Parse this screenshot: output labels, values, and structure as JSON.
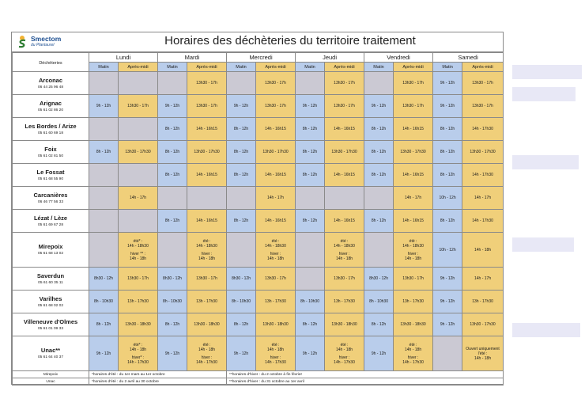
{
  "header": {
    "logo_name": "Smectom",
    "logo_sub": "du Plantaurel",
    "title": "Horaires des déchèteries du territoire traitement"
  },
  "columns": {
    "corner_label": "Déchèteries",
    "days": [
      "Lundi",
      "Mardi",
      "Mercredi",
      "Jeudi",
      "Vendredi",
      "Samedi"
    ],
    "morning_label": "Matin",
    "afternoon_label": "Après-midi"
  },
  "sites": [
    {
      "name": "Arconac",
      "phone": "06 44 25 96 48",
      "cells": [
        "",
        "",
        "",
        "13h30 - 17h",
        "",
        "13h30 - 17h",
        "",
        "13h30 - 17h",
        "",
        "13h30 - 17h",
        "9h - 12h",
        "13h30 - 17h"
      ]
    },
    {
      "name": "Arignac",
      "phone": "05 61 02 86 20",
      "cells": [
        "9h - 12h",
        "13h30 - 17h",
        "9h - 12h",
        "13h30 - 17h",
        "9h - 12h",
        "13h30 - 17h",
        "9h - 12h",
        "13h30 - 17h",
        "9h - 12h",
        "13h30 - 17h",
        "9h - 12h",
        "13h30 - 17h"
      ]
    },
    {
      "name": "Les Bordes / Arize",
      "phone": "05 61 60 69 18",
      "cells": [
        "",
        "",
        "8h - 12h",
        "14h - 16h15",
        "8h - 12h",
        "14h - 16h15",
        "8h - 12h",
        "14h - 16h15",
        "8h - 12h",
        "14h - 16h15",
        "8h - 12h",
        "14h - 17h30"
      ]
    },
    {
      "name": "Foix",
      "phone": "05 61 02 81 50",
      "cells": [
        "8h - 12h",
        "13h30 - 17h30",
        "8h - 12h",
        "13h30 - 17h30",
        "8h - 12h",
        "13h30 - 17h30",
        "8h - 12h",
        "13h30 - 17h30",
        "8h - 12h",
        "13h30 - 17h30",
        "8h - 12h",
        "13h30 - 17h30"
      ]
    },
    {
      "name": "Le Fossat",
      "phone": "05 61 68 55 90",
      "cells": [
        "",
        "",
        "8h - 12h",
        "14h - 16h15",
        "8h - 12h",
        "14h - 16h15",
        "8h - 12h",
        "14h - 16h15",
        "8h - 12h",
        "14h - 16h15",
        "8h - 12h",
        "14h - 17h30"
      ]
    },
    {
      "name": "Carcanières",
      "phone": "06 46 77 56 33",
      "cells": [
        "",
        "14h - 17h",
        "",
        "",
        "",
        "14h - 17h",
        "",
        "",
        "",
        "14h - 17h",
        "10h - 12h",
        "14h - 17h"
      ]
    },
    {
      "name": "Lézat / Lèze",
      "phone": "05 61 69 67 28",
      "cells": [
        "",
        "",
        "8h - 12h",
        "14h - 16h15",
        "8h - 12h",
        "14h - 16h15",
        "8h - 12h",
        "14h - 16h15",
        "8h - 12h",
        "14h - 16h15",
        "8h - 12h",
        "14h - 17h30"
      ]
    },
    {
      "name": "Mirepoix",
      "phone": "05 61 68 13 02",
      "cells": [
        "",
        "été* :|14h - 18h30|hiver ** :|14h - 18h",
        "",
        "été :|14h - 18h30|hiver :|14h - 18h",
        "",
        "été :|14h - 18h30|hiver :|14h - 18h",
        "",
        "été :|14h - 18h30|hiver :|14h - 18h",
        "",
        "été :|14h - 18h30|hiver :|14h - 18h",
        "10h - 12h",
        "14h - 18h"
      ]
    },
    {
      "name": "Saverdun",
      "phone": "05 61 60 35 11",
      "cells": [
        "8h30 - 12h",
        "13h30 - 17h",
        "8h30 - 12h",
        "13h30 - 17h",
        "8h30 - 12h",
        "13h30 - 17h",
        "",
        "13h30 - 17h",
        "8h30 - 12h",
        "13h30 - 17h",
        "9h - 12h",
        "14h - 17h"
      ]
    },
    {
      "name": "Varilhes",
      "phone": "05 61 68 02 02",
      "cells": [
        "8h - 10h30",
        "13h - 17h30",
        "8h - 10h30",
        "13h - 17h30",
        "8h - 10h30",
        "13h - 17h30",
        "8h - 10h30",
        "13h - 17h30",
        "8h - 10h30",
        "13h - 17h30",
        "9h - 12h",
        "13h - 17h30"
      ]
    },
    {
      "name": "Villeneuve d'Olmes",
      "phone": "05 61 01 09 33",
      "cells": [
        "8h - 12h",
        "13h30 - 18h30",
        "8h - 12h",
        "13h30 - 18h30",
        "8h - 12h",
        "13h30 - 18h30",
        "8h - 12h",
        "13h30 - 18h30",
        "8h - 12h",
        "13h30 - 18h30",
        "9h - 12h",
        "13h30 - 17h30"
      ]
    },
    {
      "name": "Unac**",
      "phone": "05 61 64 40 37",
      "cells": [
        "9h - 12h",
        "été* :|14h - 18h|hiver* :|14h - 17h30",
        "9h - 12h",
        "été :|14h - 18h|hiver :|14h - 17h30",
        "9h - 12h",
        "été :|14h - 18h|hiver :|14h - 17h30",
        "9h - 12h",
        "été :|14h - 18h|hiver :|14h - 17h30",
        "9h - 12h",
        "été :|14h - 18h|hiver :|14h - 17h30",
        "",
        "Ouvert uniquement l'été :|14h - 18h"
      ]
    }
  ],
  "footnotes": [
    {
      "label": "Mirepoix",
      "summer": "*horaires d'été : du 1er mars au 1er octobre",
      "winter": "**horaires d'hiver : du 2 octobre à fin février"
    },
    {
      "label": "Unac",
      "summer": "*horaires d'été : du 2 avril au 30 octobre",
      "winter": "**horaires d'hiver : du 31 octobre au 1er avril"
    }
  ],
  "colors": {
    "morning": "#b9cdeb",
    "afternoon": "#f0cf7a",
    "closed": "#cbc9d3",
    "title": "#1d4f91"
  },
  "icons": [
    "smectom-logo-icon"
  ]
}
